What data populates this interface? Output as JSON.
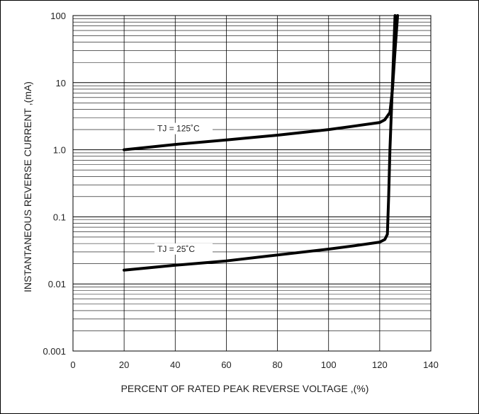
{
  "chart_data": {
    "type": "line",
    "xlabel": "PERCENT OF RATED PEAK REVERSE VOLTAGE ,(%)",
    "ylabel": "INSTANTANEOUS REVERSE CURRENT ,(mA)",
    "xlim": [
      0,
      140
    ],
    "ylim": [
      0.001,
      100
    ],
    "yscale": "log",
    "grid": true,
    "x_ticks": [
      0,
      20,
      40,
      60,
      80,
      100,
      120,
      140
    ],
    "x_tick_labels": [
      "0",
      "20",
      "40",
      "60",
      "80",
      "100",
      "120",
      "140"
    ],
    "y_ticks": [
      100,
      10,
      1,
      0.1,
      0.01,
      0.001
    ],
    "y_tick_labels": [
      "100",
      "10",
      "1.0",
      "0.1",
      "0.01",
      "0.001"
    ],
    "series": [
      {
        "name": "TJ = 125˚C",
        "x": [
          20,
          40,
          60,
          80,
          100,
          110,
          120,
          122,
          124,
          125,
          126,
          127
        ],
        "y": [
          1.0,
          1.2,
          1.4,
          1.65,
          2.0,
          2.25,
          2.55,
          2.8,
          3.6,
          8,
          30,
          100
        ]
      },
      {
        "name": "TJ = 25˚C",
        "x": [
          20,
          40,
          60,
          80,
          100,
          110,
          120,
          122,
          123,
          123.5,
          124,
          125,
          126
        ],
        "y": [
          0.016,
          0.019,
          0.022,
          0.027,
          0.033,
          0.037,
          0.042,
          0.046,
          0.055,
          0.2,
          1.0,
          10,
          100
        ]
      }
    ]
  }
}
